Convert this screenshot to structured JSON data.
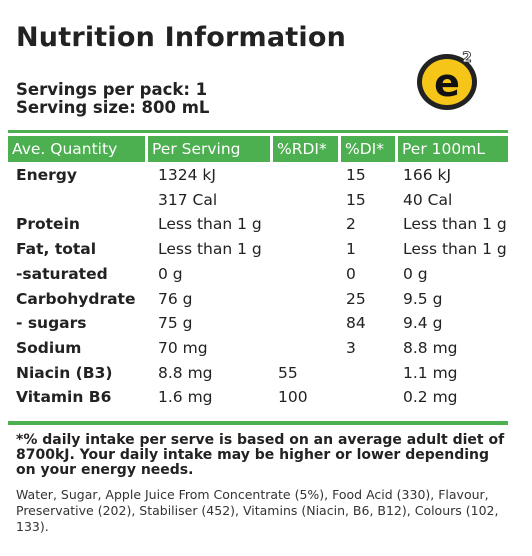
{
  "title": "Nutrition Information",
  "brand": {
    "logo_text": "e",
    "superscript": "2"
  },
  "servings": {
    "per_pack": "Servings per pack: 1",
    "size": "Serving size: 800 mL"
  },
  "table": {
    "headers": [
      "Ave. Quantity",
      "Per Serving",
      "%RDI*",
      "%DI*",
      "Per 100mL"
    ],
    "rows": [
      [
        "Energy",
        "1324 kJ",
        "",
        "15",
        "166 kJ"
      ],
      [
        "",
        "317 Cal",
        "",
        "15",
        "40 Cal"
      ],
      [
        "Protein",
        "Less than 1 g",
        "",
        "2",
        "Less than 1 g"
      ],
      [
        "Fat, total",
        "Less than 1 g",
        "",
        "1",
        "Less than 1 g"
      ],
      [
        "-saturated",
        "0 g",
        "",
        "0",
        "0 g"
      ],
      [
        "Carbohydrate",
        "76 g",
        "",
        "25",
        "9.5 g"
      ],
      [
        "- sugars",
        "75 g",
        "",
        "84",
        "9.4 g"
      ],
      [
        "Sodium",
        "70 mg",
        "",
        "3",
        "8.8 mg"
      ],
      [
        "Niacin (B3)",
        "8.8 mg",
        "55",
        "",
        "1.1 mg"
      ],
      [
        "Vitamin B6",
        "1.6 mg",
        "100",
        "",
        "0.2 mg"
      ]
    ]
  },
  "footnote": "*% daily intake per serve is based on an average adult diet of 8700kJ. Your daily intake may be higher or lower depending on your energy needs.",
  "ingredients": "Water, Sugar, Apple Juice From Concentrate (5%), Food Acid (330), Flavour, Preservative (202), Stabiliser (452), Vitamins (Niacin, B6, B12), Colours (102, 133).",
  "colors": {
    "accent": "#4caf50",
    "logo_yellow": "#f5c518",
    "text": "#222222"
  }
}
